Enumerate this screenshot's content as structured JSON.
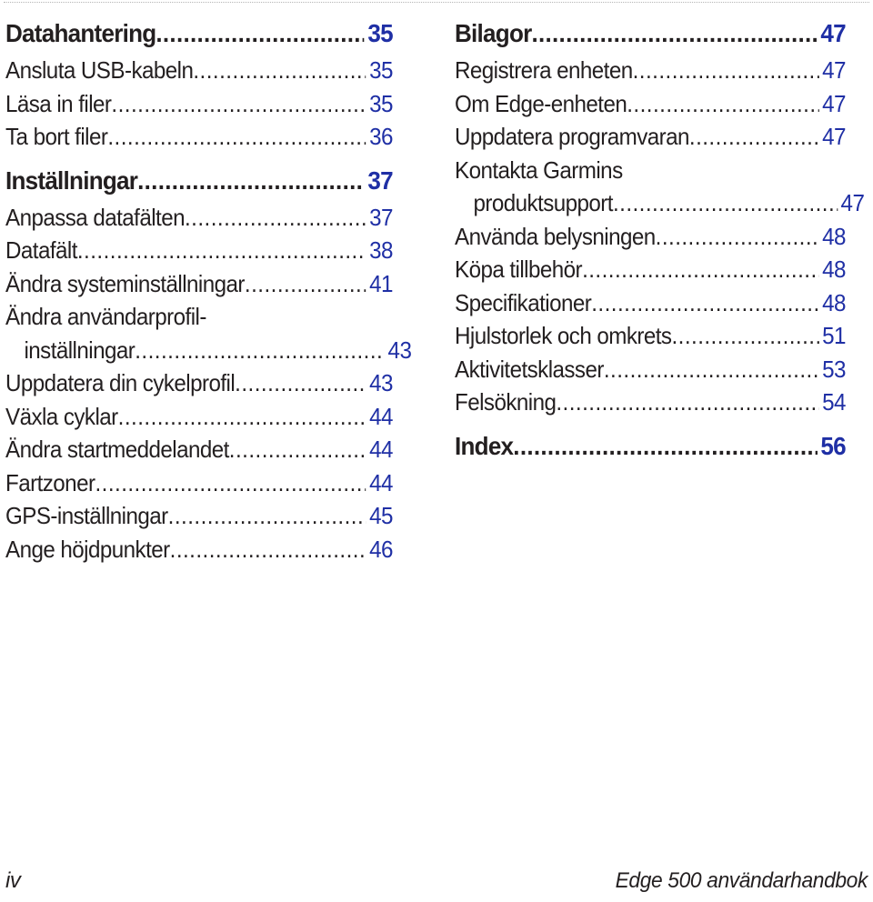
{
  "left_column": {
    "sections": [
      {
        "heading": {
          "title": "Datahantering",
          "page": "35"
        },
        "entries": [
          {
            "title": "Ansluta USB-kabeln",
            "page": "35"
          },
          {
            "title": "Läsa in filer",
            "page": "35"
          },
          {
            "title": "Ta bort filer",
            "page": "36"
          }
        ]
      },
      {
        "heading": {
          "title": "Inställningar",
          "page": "37"
        },
        "entries": [
          {
            "title": "Anpassa datafälten",
            "page": "37"
          },
          {
            "title": "Datafält",
            "page": "38"
          },
          {
            "title": "Ändra systeminställningar",
            "page": "41"
          },
          {
            "title": "Ändra användarprofil-",
            "continuation": "inställningar",
            "page": "43"
          },
          {
            "title": "Uppdatera din cykelprofil",
            "page": "43"
          },
          {
            "title": "Växla cyklar",
            "page": "44"
          },
          {
            "title": "Ändra startmeddelandet",
            "page": "44"
          },
          {
            "title": "Fartzoner",
            "page": "44"
          },
          {
            "title": "GPS-inställningar",
            "page": "45"
          },
          {
            "title": "Ange höjdpunkter",
            "page": "46"
          }
        ]
      }
    ]
  },
  "right_column": {
    "sections": [
      {
        "heading": {
          "title": "Bilagor",
          "page": "47"
        },
        "entries": [
          {
            "title": "Registrera enheten",
            "page": "47"
          },
          {
            "title": "Om Edge-enheten",
            "page": "47"
          },
          {
            "title": "Uppdatera programvaran",
            "page": "47"
          },
          {
            "title": "Kontakta Garmins",
            "continuation": "produktsupport",
            "page": "47"
          },
          {
            "title": "Använda belysningen",
            "page": "48"
          },
          {
            "title": "Köpa tillbehör",
            "page": "48"
          },
          {
            "title": "Specifikationer",
            "page": "48"
          },
          {
            "title": "Hjulstorlek och omkrets",
            "page": "51"
          },
          {
            "title": "Aktivitetsklasser",
            "page": "53"
          },
          {
            "title": "Felsökning",
            "page": "54"
          }
        ]
      },
      {
        "heading": {
          "title": "Index",
          "page": "56"
        },
        "entries": []
      }
    ]
  },
  "footer": {
    "page_number": "iv",
    "manual_title": "Edge 500 användarhandbok"
  },
  "colors": {
    "text": "#231f20",
    "page_link": "#1f2fa5"
  }
}
